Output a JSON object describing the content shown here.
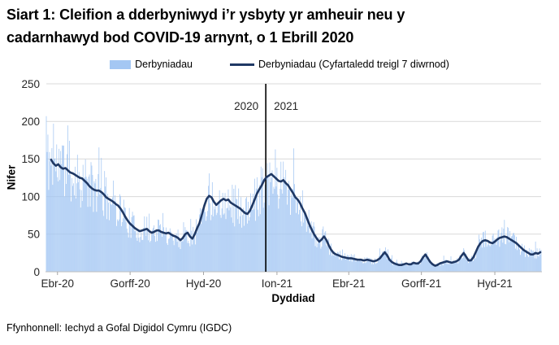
{
  "title": {
    "text": "Siart 1: Cleifion a dderbyniwyd i’r ysbyty yr amheuir neu y cadarnhawyd bod COVID-19 arnynt, o 1 Ebrill 2020",
    "line1": "Siart 1: Cleifion a dderbyniwyd i’r ysbyty yr amheuir neu y",
    "line2": "cadarnhawyd bod COVID-19 arnynt, o 1 Ebrill 2020"
  },
  "legend": {
    "bars_label": "Derbyniadau",
    "line_label": "Derbyniadau  (Cyfartaledd treigl 7 diwrnod)"
  },
  "footer": "Ffynhonnell: Iechyd a Gofal Digidol Cymru (IGDC)",
  "colors": {
    "bar": "#A4C7F3",
    "line": "#1F3864",
    "gridline": "#D9D9D9",
    "axis": "#BFBFBF",
    "tick": "#A6A6A6",
    "text": "#262626",
    "divider": "#000000"
  },
  "chart_data": {
    "type": "bar",
    "title": "Siart 1: Cleifion a dderbyniwyd i’r ysbyty yr amheuir neu y cadarnhawyd bod COVID-19 arnynt, o 1 Ebrill 2020",
    "xlabel": "Dyddiad",
    "ylabel": "Nifer",
    "ylim": [
      0,
      250
    ],
    "yticks": [
      0,
      50,
      100,
      150,
      200,
      250
    ],
    "grid": "horizontal",
    "legend_position": "top",
    "x_start_date": "2020-04-01",
    "x_domain_days": [
      0,
      620
    ],
    "xticks": [
      {
        "day": 14,
        "label": "Ebr-20"
      },
      {
        "day": 105,
        "label": "Gorff-20"
      },
      {
        "day": 197,
        "label": "Hyd-20"
      },
      {
        "day": 289,
        "label": "Ion-21"
      },
      {
        "day": 379,
        "label": "Ebr-21"
      },
      {
        "day": 470,
        "label": "Gorff-21"
      },
      {
        "day": 562,
        "label": "Hyd-21"
      }
    ],
    "year_divider": {
      "day": 275,
      "label_left": "2020",
      "label_right": "2021"
    },
    "series": [
      {
        "name": "Derbyniadau",
        "type": "bar",
        "note": "Daily admissions bars; reconstructed as 7-day-average value plus bounded noise, since individual daily bars are ~1px wide in source."
      },
      {
        "name": "Derbyniadau (Cyfartaledd treigl 7 diwrnod)",
        "type": "line",
        "points": [
          [
            6,
            149
          ],
          [
            9,
            144
          ],
          [
            12,
            141
          ],
          [
            15,
            143
          ],
          [
            18,
            139
          ],
          [
            21,
            137
          ],
          [
            24,
            138
          ],
          [
            27,
            135
          ],
          [
            30,
            132
          ],
          [
            33,
            131
          ],
          [
            36,
            129
          ],
          [
            39,
            127
          ],
          [
            42,
            125
          ],
          [
            45,
            124
          ],
          [
            48,
            121
          ],
          [
            51,
            118
          ],
          [
            54,
            114
          ],
          [
            57,
            111
          ],
          [
            60,
            109
          ],
          [
            63,
            108
          ],
          [
            66,
            108
          ],
          [
            69,
            106
          ],
          [
            72,
            103
          ],
          [
            75,
            99
          ],
          [
            78,
            97
          ],
          [
            81,
            95
          ],
          [
            84,
            93
          ],
          [
            87,
            90
          ],
          [
            90,
            88
          ],
          [
            93,
            84
          ],
          [
            96,
            79
          ],
          [
            99,
            73
          ],
          [
            102,
            68
          ],
          [
            105,
            64
          ],
          [
            108,
            61
          ],
          [
            111,
            58
          ],
          [
            114,
            56
          ],
          [
            117,
            54
          ],
          [
            120,
            55
          ],
          [
            123,
            56
          ],
          [
            126,
            57
          ],
          [
            129,
            54
          ],
          [
            132,
            52
          ],
          [
            135,
            53
          ],
          [
            138,
            55
          ],
          [
            141,
            55
          ],
          [
            144,
            53
          ],
          [
            147,
            52
          ],
          [
            150,
            51
          ],
          [
            153,
            52
          ],
          [
            156,
            50
          ],
          [
            159,
            48
          ],
          [
            162,
            47
          ],
          [
            165,
            45
          ],
          [
            168,
            42
          ],
          [
            171,
            45
          ],
          [
            174,
            50
          ],
          [
            177,
            52
          ],
          [
            180,
            47
          ],
          [
            183,
            44
          ],
          [
            186,
            50
          ],
          [
            189,
            58
          ],
          [
            192,
            65
          ],
          [
            195,
            76
          ],
          [
            198,
            88
          ],
          [
            201,
            97
          ],
          [
            204,
            101
          ],
          [
            207,
            99
          ],
          [
            210,
            93
          ],
          [
            213,
            89
          ],
          [
            216,
            92
          ],
          [
            219,
            95
          ],
          [
            222,
            97
          ],
          [
            225,
            95
          ],
          [
            228,
            96
          ],
          [
            231,
            92
          ],
          [
            234,
            90
          ],
          [
            237,
            88
          ],
          [
            240,
            86
          ],
          [
            243,
            84
          ],
          [
            246,
            81
          ],
          [
            249,
            78
          ],
          [
            252,
            77
          ],
          [
            255,
            81
          ],
          [
            258,
            88
          ],
          [
            261,
            96
          ],
          [
            264,
            104
          ],
          [
            267,
            110
          ],
          [
            270,
            115
          ],
          [
            273,
            122
          ],
          [
            276,
            126
          ],
          [
            279,
            128
          ],
          [
            282,
            130
          ],
          [
            285,
            127
          ],
          [
            288,
            124
          ],
          [
            291,
            121
          ],
          [
            294,
            120
          ],
          [
            297,
            122
          ],
          [
            300,
            118
          ],
          [
            303,
            115
          ],
          [
            306,
            110
          ],
          [
            309,
            105
          ],
          [
            312,
            99
          ],
          [
            315,
            96
          ],
          [
            318,
            91
          ],
          [
            321,
            84
          ],
          [
            324,
            78
          ],
          [
            327,
            70
          ],
          [
            330,
            62
          ],
          [
            333,
            55
          ],
          [
            336,
            49
          ],
          [
            339,
            44
          ],
          [
            342,
            40
          ],
          [
            345,
            43
          ],
          [
            348,
            47
          ],
          [
            351,
            42
          ],
          [
            354,
            35
          ],
          [
            357,
            29
          ],
          [
            360,
            25
          ],
          [
            363,
            23
          ],
          [
            366,
            22
          ],
          [
            370,
            20
          ],
          [
            374,
            19
          ],
          [
            378,
            18
          ],
          [
            382,
            18
          ],
          [
            386,
            17
          ],
          [
            390,
            16
          ],
          [
            394,
            16
          ],
          [
            398,
            15
          ],
          [
            402,
            16
          ],
          [
            406,
            15
          ],
          [
            410,
            14
          ],
          [
            414,
            15
          ],
          [
            418,
            18
          ],
          [
            421,
            22
          ],
          [
            424,
            26
          ],
          [
            427,
            22
          ],
          [
            430,
            16
          ],
          [
            433,
            13
          ],
          [
            436,
            11
          ],
          [
            439,
            10
          ],
          [
            442,
            9
          ],
          [
            445,
            9
          ],
          [
            448,
            10
          ],
          [
            451,
            11
          ],
          [
            454,
            10
          ],
          [
            457,
            10
          ],
          [
            460,
            12
          ],
          [
            463,
            11
          ],
          [
            466,
            11
          ],
          [
            469,
            14
          ],
          [
            472,
            19
          ],
          [
            475,
            23
          ],
          [
            478,
            18
          ],
          [
            481,
            13
          ],
          [
            484,
            10
          ],
          [
            487,
            8
          ],
          [
            490,
            9
          ],
          [
            493,
            11
          ],
          [
            496,
            12
          ],
          [
            499,
            13
          ],
          [
            502,
            14
          ],
          [
            505,
            13
          ],
          [
            508,
            12
          ],
          [
            511,
            13
          ],
          [
            514,
            14
          ],
          [
            517,
            16
          ],
          [
            520,
            21
          ],
          [
            523,
            25
          ],
          [
            526,
            20
          ],
          [
            529,
            15
          ],
          [
            532,
            15
          ],
          [
            535,
            19
          ],
          [
            538,
            26
          ],
          [
            541,
            33
          ],
          [
            544,
            38
          ],
          [
            547,
            41
          ],
          [
            550,
            42
          ],
          [
            553,
            41
          ],
          [
            556,
            39
          ],
          [
            559,
            38
          ],
          [
            562,
            40
          ],
          [
            565,
            43
          ],
          [
            568,
            45
          ],
          [
            571,
            46
          ],
          [
            574,
            47
          ],
          [
            577,
            46
          ],
          [
            580,
            44
          ],
          [
            583,
            42
          ],
          [
            586,
            40
          ],
          [
            589,
            38
          ],
          [
            592,
            35
          ],
          [
            595,
            32
          ],
          [
            598,
            29
          ],
          [
            601,
            27
          ],
          [
            604,
            25
          ],
          [
            607,
            23
          ],
          [
            610,
            23
          ],
          [
            613,
            25
          ],
          [
            616,
            24
          ],
          [
            619,
            26
          ]
        ]
      }
    ],
    "bar_noise": {
      "seed": 11,
      "amplitude": 0.32,
      "spike_chance": 0.05,
      "spike_amp": 0.32,
      "forced_bars": {
        "0": 207,
        "9": 197,
        "275": 165
      }
    }
  }
}
